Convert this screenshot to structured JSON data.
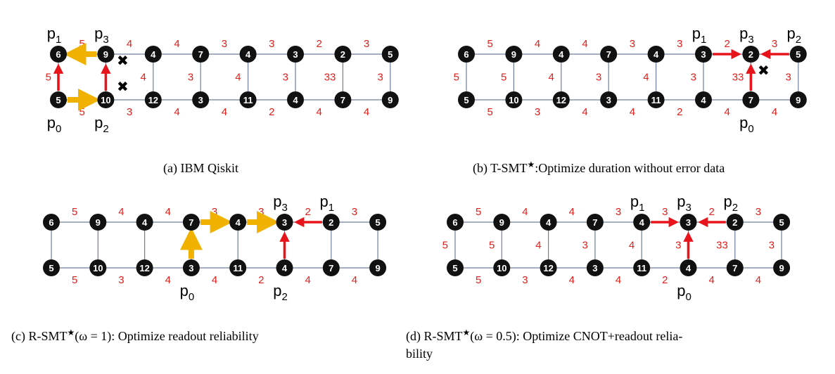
{
  "colors": {
    "node_fill": "#111111",
    "node_text": "#ffffff",
    "edge": "#6f7f99",
    "weight": "#e0201c",
    "red_arrow": "#e8141b",
    "gold_arrow": "#f0b100",
    "cross": "#000000"
  },
  "panels": [
    {
      "id": "a",
      "caption": "(a) IBM Qiskit",
      "top_nodes": [
        "6",
        "9",
        "4",
        "7",
        "4",
        "3",
        "2",
        "5"
      ],
      "bottom_nodes": [
        "5",
        "10",
        "12",
        "3",
        "11",
        "4",
        "7",
        "9"
      ],
      "top_weights": [
        "5",
        "4",
        "4",
        "3",
        "3",
        "2",
        "3"
      ],
      "bottom_weights": [
        "5",
        "3",
        "4",
        "4",
        "2",
        "4",
        "4"
      ],
      "vertical_weights": [
        "5",
        "",
        "4",
        "3",
        "4",
        "3",
        "33",
        "3"
      ],
      "qubit_labels": [
        {
          "text": "p",
          "sub": "1",
          "node": "t0",
          "pos": "above"
        },
        {
          "text": "p",
          "sub": "3",
          "node": "t1",
          "pos": "above"
        },
        {
          "text": "p",
          "sub": "0",
          "node": "b0",
          "pos": "below"
        },
        {
          "text": "p",
          "sub": "2",
          "node": "b1",
          "pos": "below"
        }
      ],
      "arrows": [
        {
          "from": "t1",
          "to": "t0",
          "color": "gold"
        },
        {
          "from": "b0",
          "to": "b1",
          "color": "gold"
        },
        {
          "from": "b0",
          "to": "t0",
          "color": "red"
        },
        {
          "from": "b1",
          "to": "t1",
          "color": "red"
        }
      ],
      "crosses": [
        {
          "symbol": "✖",
          "near": "t1",
          "side": "right"
        },
        {
          "symbol": "✖",
          "near": "b1",
          "side": "upper-right"
        }
      ]
    },
    {
      "id": "b",
      "caption": "(b) T-SMT",
      "caption_suffix": ":Optimize duration without error data",
      "top_nodes": [
        "6",
        "9",
        "4",
        "7",
        "4",
        "3",
        "2",
        "5"
      ],
      "bottom_nodes": [
        "5",
        "10",
        "12",
        "3",
        "11",
        "4",
        "7",
        "9"
      ],
      "top_weights": [
        "5",
        "4",
        "4",
        "3",
        "3",
        "2",
        "3"
      ],
      "bottom_weights": [
        "5",
        "3",
        "4",
        "4",
        "2",
        "4",
        "4"
      ],
      "vertical_weights": [
        "5",
        "5",
        "4",
        "3",
        "4",
        "3",
        "33",
        "3"
      ],
      "qubit_labels": [
        {
          "text": "p",
          "sub": "1",
          "node": "t5",
          "pos": "above"
        },
        {
          "text": "p",
          "sub": "3",
          "node": "t6",
          "pos": "above"
        },
        {
          "text": "p",
          "sub": "2",
          "node": "t7",
          "pos": "above"
        },
        {
          "text": "p",
          "sub": "0",
          "node": "b6",
          "pos": "below"
        }
      ],
      "arrows": [
        {
          "from": "t5",
          "to": "t6",
          "color": "red"
        },
        {
          "from": "t7",
          "to": "t6",
          "color": "red"
        },
        {
          "from": "b6",
          "to": "t6",
          "color": "red"
        }
      ],
      "crosses": [
        {
          "symbol": "✖",
          "near": "t6",
          "side": "lower-right"
        }
      ]
    },
    {
      "id": "c",
      "caption": "(c) R-SMT",
      "caption_suffix": "(ω = 1): Optimize readout reliability",
      "top_nodes": [
        "6",
        "9",
        "4",
        "7",
        "4",
        "3",
        "2",
        "5"
      ],
      "bottom_nodes": [
        "5",
        "10",
        "12",
        "3",
        "11",
        "4",
        "7",
        "9"
      ],
      "top_weights": [
        "5",
        "4",
        "4",
        "3",
        "3",
        "2",
        "3"
      ],
      "bottom_weights": [
        "5",
        "3",
        "4",
        "4",
        "2",
        "4",
        "4"
      ],
      "vertical_weights": [
        "",
        "",
        "",
        "",
        "",
        "",
        "",
        ""
      ],
      "qubit_labels": [
        {
          "text": "p",
          "sub": "3",
          "node": "t5",
          "pos": "above"
        },
        {
          "text": "p",
          "sub": "1",
          "node": "t6",
          "pos": "above"
        },
        {
          "text": "p",
          "sub": "0",
          "node": "b3",
          "pos": "below"
        },
        {
          "text": "p",
          "sub": "2",
          "node": "b5",
          "pos": "below"
        }
      ],
      "arrows": [
        {
          "from": "b3",
          "to": "t3",
          "color": "gold"
        },
        {
          "from": "t3",
          "to": "t4",
          "color": "gold"
        },
        {
          "from": "t4",
          "to": "t5",
          "color": "gold"
        },
        {
          "from": "t6",
          "to": "t5",
          "color": "red"
        },
        {
          "from": "b5",
          "to": "t5",
          "color": "red"
        }
      ],
      "crosses": []
    },
    {
      "id": "d",
      "caption": "(d) R-SMT",
      "caption_suffix": "(ω = 0.5): Optimize CNOT+readout relia-",
      "caption_line2": "bility",
      "top_nodes": [
        "6",
        "9",
        "4",
        "7",
        "4",
        "3",
        "2",
        "5"
      ],
      "bottom_nodes": [
        "5",
        "10",
        "12",
        "3",
        "11",
        "4",
        "7",
        "9"
      ],
      "top_weights": [
        "5",
        "4",
        "4",
        "3",
        "3",
        "2",
        "3"
      ],
      "bottom_weights": [
        "5",
        "3",
        "4",
        "4",
        "2",
        "4",
        "4"
      ],
      "vertical_weights": [
        "5",
        "5",
        "4",
        "3",
        "4",
        "3",
        "33",
        "3"
      ],
      "qubit_labels": [
        {
          "text": "p",
          "sub": "1",
          "node": "t4",
          "pos": "above"
        },
        {
          "text": "p",
          "sub": "3",
          "node": "t5",
          "pos": "above"
        },
        {
          "text": "p",
          "sub": "2",
          "node": "t6",
          "pos": "above"
        },
        {
          "text": "p",
          "sub": "0",
          "node": "b5",
          "pos": "below"
        }
      ],
      "arrows": [
        {
          "from": "t4",
          "to": "t5",
          "color": "red"
        },
        {
          "from": "t6",
          "to": "t5",
          "color": "red"
        },
        {
          "from": "b5",
          "to": "t5",
          "color": "red"
        }
      ],
      "crosses": []
    }
  ]
}
